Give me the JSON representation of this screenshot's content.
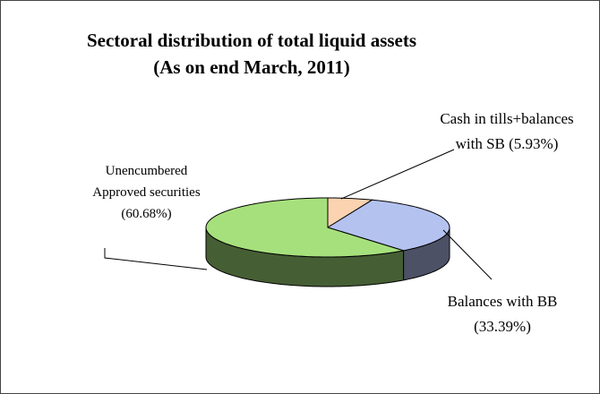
{
  "chart_data": {
    "type": "pie3d",
    "title": "Sectoral distribution of total liquid assets",
    "subtitle": "(As on end March, 2011)",
    "categories": [
      "Cash in tills+balances with SB",
      "Balances with BB",
      "Unencumbered Approved securities"
    ],
    "values": [
      5.93,
      33.39,
      60.68
    ],
    "value_labels": [
      "(5.93%)",
      "(33.39%)",
      "(60.68%)"
    ],
    "colors": [
      "#fbd3b0",
      "#b4c2f0",
      "#a6e07c"
    ]
  }
}
